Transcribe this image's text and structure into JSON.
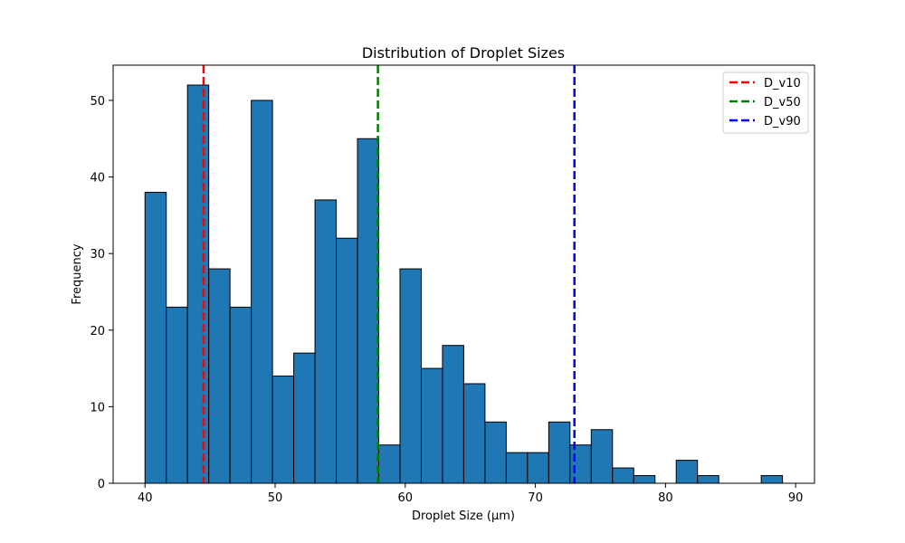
{
  "chart_data": {
    "type": "bar",
    "title": "Distribution of Droplet Sizes",
    "xlabel": "Droplet Size (µm)",
    "ylabel": "Frequency",
    "xlim": [
      37.55,
      91.45
    ],
    "ylim": [
      0,
      54.6
    ],
    "xticks": [
      40,
      50,
      60,
      70,
      80,
      90
    ],
    "yticks": [
      0,
      10,
      20,
      30,
      40,
      50
    ],
    "bin_start": 40.0,
    "bin_width": 1.633,
    "values": [
      38,
      23,
      52,
      28,
      23,
      50,
      14,
      17,
      37,
      32,
      45,
      5,
      28,
      15,
      18,
      13,
      8,
      4,
      4,
      8,
      5,
      7,
      2,
      1,
      0,
      3,
      1,
      0,
      0,
      1
    ],
    "bar_color": "#1f77b4",
    "bar_edge_color": "#000000",
    "grid": false,
    "legend_position": "top-right",
    "reference_lines": [
      {
        "name": "D_v10",
        "x": 44.5,
        "color": "#ff0000",
        "style": "dashed"
      },
      {
        "name": "D_v50",
        "x": 57.9,
        "color": "#008000",
        "style": "dashed"
      },
      {
        "name": "D_v90",
        "x": 73.0,
        "color": "#0000ff",
        "style": "dashed"
      }
    ]
  }
}
